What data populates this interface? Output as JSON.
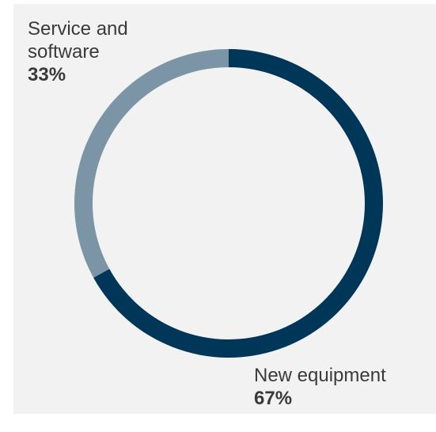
{
  "chart_data": {
    "type": "donut",
    "title": "",
    "segments": [
      {
        "name": "New equipment",
        "value": 67,
        "display": "67%",
        "color": "#003657"
      },
      {
        "name": "Service and software",
        "value": 33,
        "display": "33%",
        "color": "#7b95a7"
      }
    ],
    "start_angle_deg": 0,
    "direction": "clockwise"
  },
  "labels": {
    "service": {
      "name_line1": "Service and",
      "name_line2": "software",
      "percent": "33%"
    },
    "equipment": {
      "name": "New equipment",
      "percent": "67%"
    }
  },
  "colors": {
    "panel_background": "#f2f2f2",
    "text": "#3a3a3a"
  }
}
